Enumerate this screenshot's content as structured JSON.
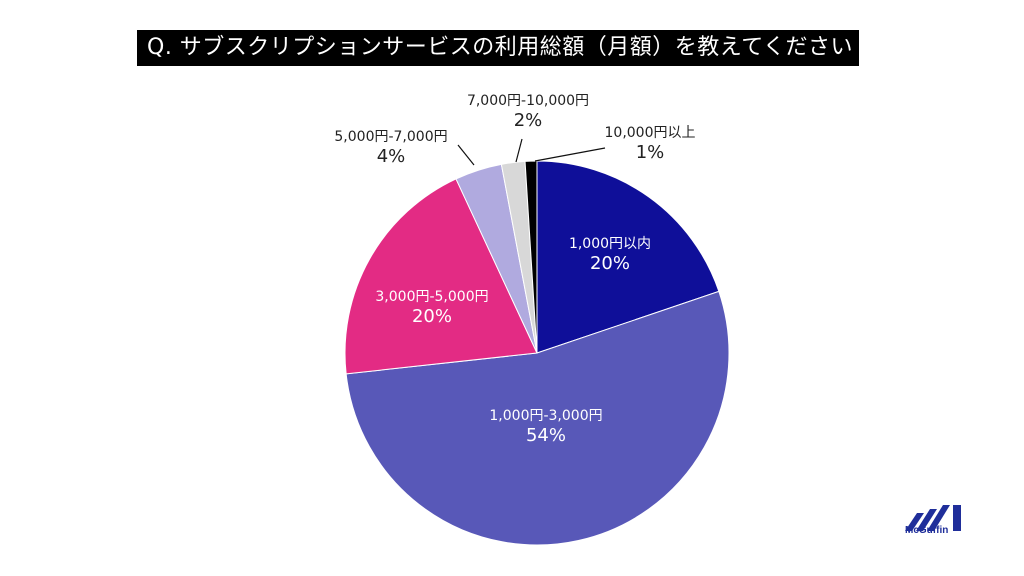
{
  "title": "Q. サブスクリプションサービスの利用総額（月額）を教えてください",
  "brand": {
    "name": "McGuffin",
    "color": "#1f2e9a"
  },
  "chart_data": {
    "type": "pie",
    "title": "Q. サブスクリプションサービスの利用総額（月額）を教えてください",
    "start_angle": "12 o'clock, clockwise",
    "slices": [
      {
        "label": "1,000円以内",
        "value": 20,
        "pct_label": "20%",
        "color": "#0f0f99"
      },
      {
        "label": "1,000円-3,000円",
        "value": 54,
        "pct_label": "54%",
        "color": "#5858b8"
      },
      {
        "label": "3,000円-5,000円",
        "value": 20,
        "pct_label": "20%",
        "color": "#e32b84"
      },
      {
        "label": "5,000円-7,000円",
        "value": 4,
        "pct_label": "4%",
        "color": "#b0aadf"
      },
      {
        "label": "7,000円-10,000円",
        "value": 2,
        "pct_label": "2%",
        "color": "#d8d8d8"
      },
      {
        "label": "10,000円以上",
        "value": 1,
        "pct_label": "1%",
        "color": "#000000"
      }
    ]
  }
}
